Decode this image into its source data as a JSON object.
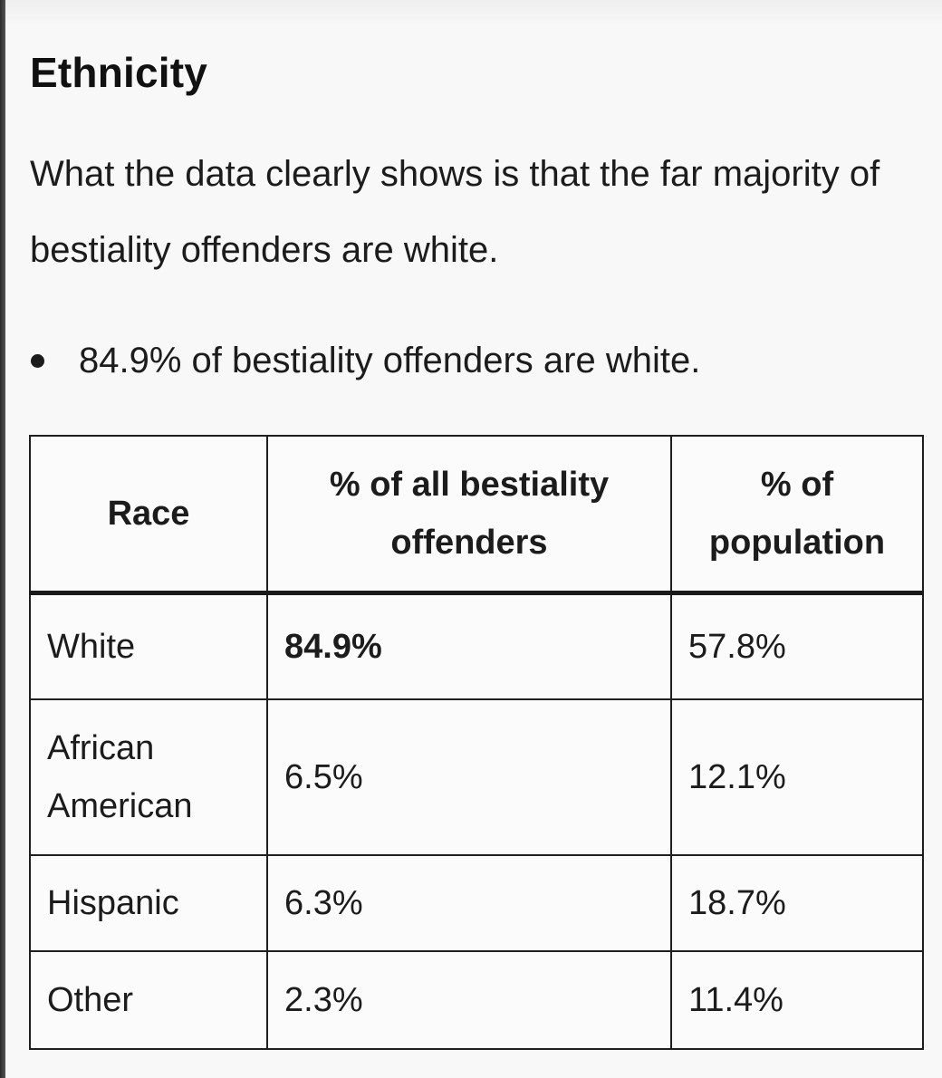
{
  "section": {
    "heading": "Ethnicity",
    "intro": "What the data clearly shows is that the far majority of bestiality offenders are white."
  },
  "bullets": [
    "84.9% of bestiality offenders are white."
  ],
  "table": {
    "headers": [
      "Race",
      "% of all bestiality offenders",
      "% of population"
    ],
    "rows": [
      {
        "race": "White",
        "offenders": "84.9%",
        "population": "57.8%"
      },
      {
        "race": "African American",
        "offenders": "6.5%",
        "population": "12.1%"
      },
      {
        "race": "Hispanic",
        "offenders": "6.3%",
        "population": "18.7%"
      },
      {
        "race": "Other",
        "offenders": "2.3%",
        "population": "11.4%"
      }
    ]
  }
}
